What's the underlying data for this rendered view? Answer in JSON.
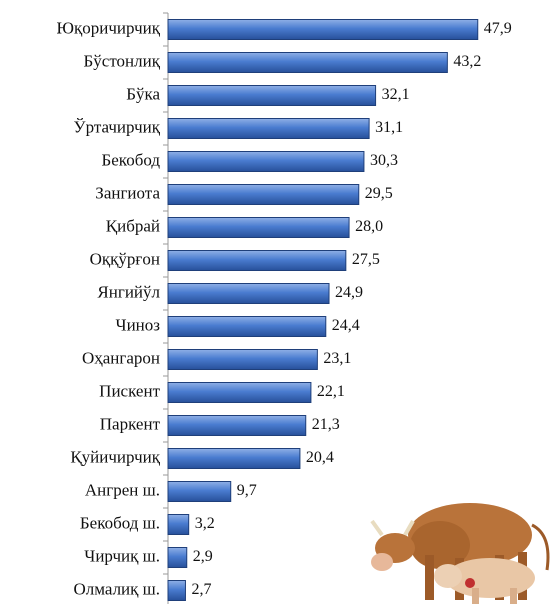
{
  "chart_data": {
    "type": "bar",
    "orientation": "horizontal",
    "categories": [
      "Юқоричирчиқ",
      "Бўстонлиқ",
      "Бўка",
      "Ўртачирчиқ",
      "Бекобод",
      "Зангиота",
      "Қибрай",
      "Оққўрғон",
      "Янгийўл",
      "Чиноз",
      "Оҳангарон",
      "Пискент",
      "Паркент",
      "Қуйичирчиқ",
      "Ангрен ш.",
      "Бекобод ш.",
      "Чирчиқ ш.",
      "Олмалиқ ш."
    ],
    "values": [
      47.9,
      43.2,
      32.1,
      31.1,
      30.3,
      29.5,
      28.0,
      27.5,
      24.9,
      24.4,
      23.1,
      22.1,
      21.3,
      20.4,
      9.7,
      3.2,
      2.9,
      2.7
    ],
    "value_labels": [
      "47,9",
      "43,2",
      "32,1",
      "31,1",
      "30,3",
      "29,5",
      "28,0",
      "27,5",
      "24,9",
      "24,4",
      "23,1",
      "22,1",
      "21,3",
      "20,4",
      "9,7",
      "3,2",
      "2,9",
      "2,7"
    ],
    "color": "#3f6fc0",
    "xlim": [
      0,
      60
    ]
  }
}
